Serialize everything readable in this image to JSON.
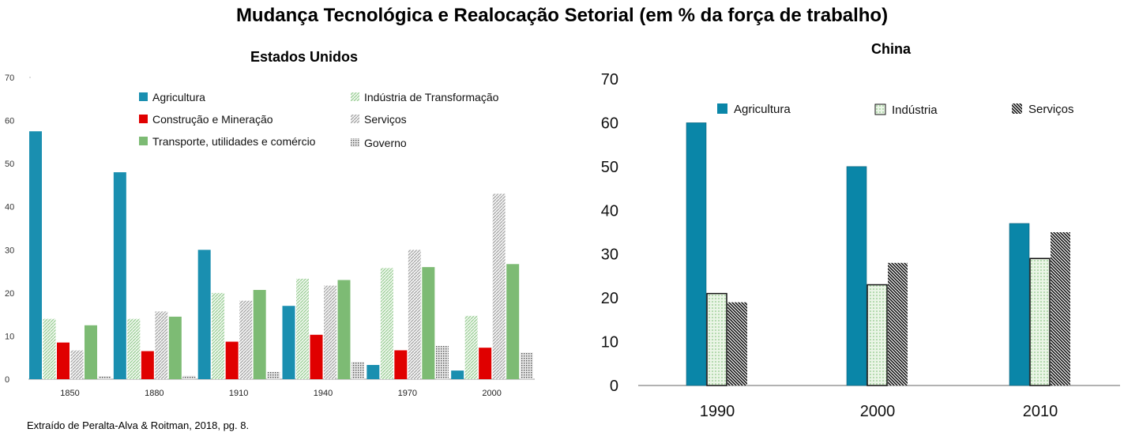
{
  "title": "Mudança Tecnológica e Realocação Setorial (em % da força de trabalho)",
  "source": "Extraído de Peralta-Alva & Roitman, 2018, pg. 8.",
  "chart_data": [
    {
      "type": "bar",
      "title": "Estados Unidos",
      "categories": [
        "1850",
        "1880",
        "1910",
        "1940",
        "1970",
        "2000"
      ],
      "ylim": [
        0,
        70
      ],
      "yticks": [
        0,
        10,
        20,
        30,
        40,
        50,
        60,
        70
      ],
      "legend": "top-center",
      "series": [
        {
          "name": "Agricultura",
          "color": "#1a8fb0",
          "pattern": "solid",
          "values": [
            57.5,
            48,
            30,
            17,
            3.3,
            2
          ]
        },
        {
          "name": "Indústria  de Transformação",
          "color": "#8fc88a",
          "pattern": "hatch",
          "values": [
            14,
            14,
            20,
            23.3,
            25.8,
            14.7
          ]
        },
        {
          "name": "Construção e Mineração",
          "color": "#e00000",
          "pattern": "solid",
          "values": [
            8.5,
            6.5,
            8.7,
            10.3,
            6.7,
            7.3
          ]
        },
        {
          "name": "Serviços",
          "color": "#9a9a9a",
          "pattern": "hatch",
          "values": [
            6.7,
            15.7,
            18.2,
            21.7,
            30,
            43
          ]
        },
        {
          "name": "Transporte, utilidades e comércio",
          "color": "#7dbb74",
          "pattern": "solid",
          "values": [
            12.5,
            14.5,
            20.7,
            23,
            26,
            26.7
          ]
        },
        {
          "name": "Governo",
          "color": "#6e6e6e",
          "pattern": "dots",
          "values": [
            0.7,
            0.8,
            1.7,
            4,
            7.7,
            6.2
          ]
        }
      ]
    },
    {
      "type": "bar",
      "title": "China",
      "categories": [
        "1990",
        "2000",
        "2010"
      ],
      "ylim": [
        0,
        70
      ],
      "yticks": [
        0,
        10,
        20,
        30,
        40,
        50,
        60,
        70
      ],
      "legend": "top",
      "series": [
        {
          "name": "Agricultura",
          "color": "#0a86a8",
          "pattern": "solid",
          "values": [
            60,
            50,
            37
          ]
        },
        {
          "name": "Indústria",
          "color": "#c9e6c3",
          "pattern": "dots",
          "values": [
            21,
            23,
            29
          ]
        },
        {
          "name": "Serviços",
          "color": "#111111",
          "pattern": "hatch",
          "values": [
            19,
            28,
            35
          ]
        }
      ]
    }
  ]
}
